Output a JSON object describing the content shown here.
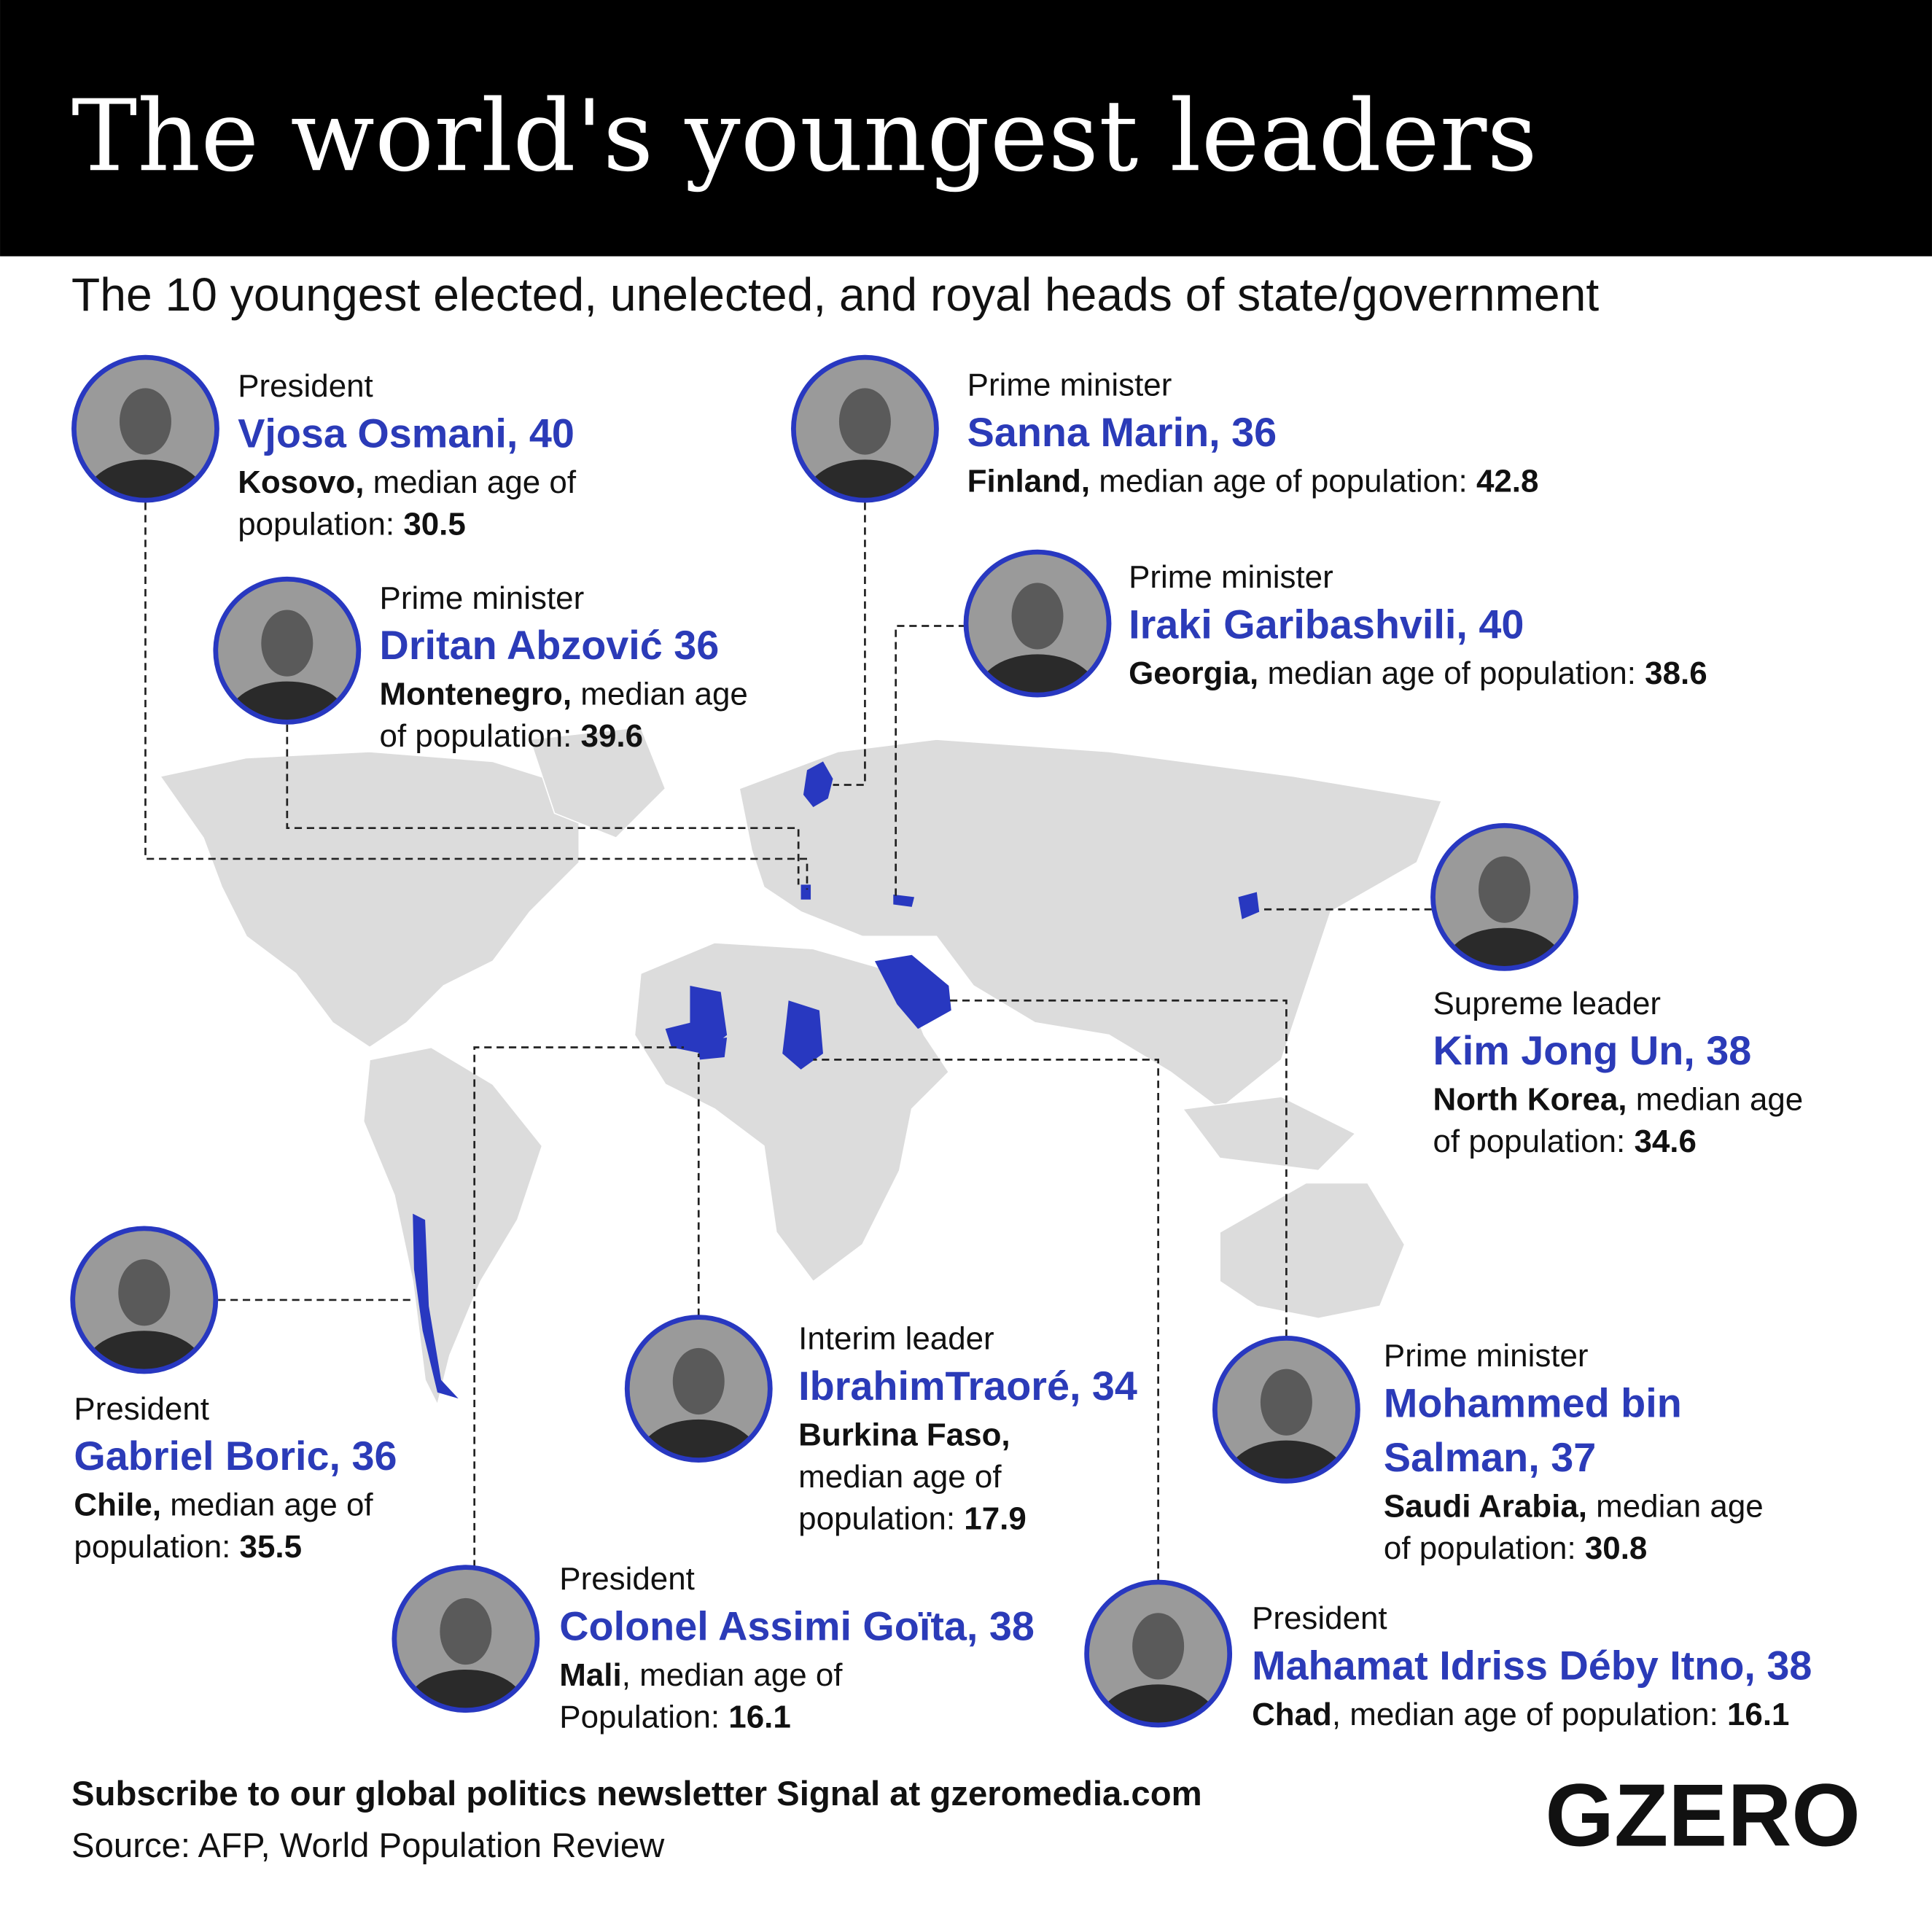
{
  "header": {
    "title": "The world's youngest leaders",
    "subtitle": "The 10 youngest elected, unelected, and royal heads of state/government"
  },
  "leaders": [
    {
      "role": "President",
      "name": [
        "Vjosa Osmani, 40"
      ],
      "details": [
        [
          {
            "t": "Kosovo,",
            "b": true
          },
          {
            "t": " median age of"
          }
        ],
        [
          {
            "t": "population: "
          },
          {
            "t": "30.5",
            "b": true
          }
        ]
      ]
    },
    {
      "role": "Prime minister",
      "name": [
        "Sanna Marin, 36"
      ],
      "details": [
        [
          {
            "t": "Finland,",
            "b": true
          },
          {
            "t": " median age of population: "
          },
          {
            "t": "42.8",
            "b": true
          }
        ]
      ]
    },
    {
      "role": "Prime minister",
      "name": [
        "Dritan Abzović 36"
      ],
      "details": [
        [
          {
            "t": "Montenegro,",
            "b": true
          },
          {
            "t": " median age"
          }
        ],
        [
          {
            "t": "of population: "
          },
          {
            "t": "39.6",
            "b": true
          }
        ]
      ]
    },
    {
      "role": "Prime minister",
      "name": [
        "Iraki Garibashvili, 40"
      ],
      "details": [
        [
          {
            "t": "Georgia,",
            "b": true
          },
          {
            "t": " median age of population: "
          },
          {
            "t": "38.6",
            "b": true
          }
        ]
      ]
    },
    {
      "role": "Supreme leader",
      "name": [
        "Kim Jong Un, 38"
      ],
      "details": [
        [
          {
            "t": "North Korea,",
            "b": true
          },
          {
            "t": " median age"
          }
        ],
        [
          {
            "t": "of population: "
          },
          {
            "t": "34.6",
            "b": true
          }
        ]
      ]
    },
    {
      "role": "President",
      "name": [
        "Gabriel Boric, 36"
      ],
      "details": [
        [
          {
            "t": "Chile,",
            "b": true
          },
          {
            "t": " median age of"
          }
        ],
        [
          {
            "t": "population: "
          },
          {
            "t": "35.5",
            "b": true
          }
        ]
      ]
    },
    {
      "role": "Interim leader",
      "name": [
        "IbrahimTraoré, 34"
      ],
      "details": [
        [
          {
            "t": "Burkina Faso,",
            "b": true
          }
        ],
        [
          {
            "t": "median age of"
          }
        ],
        [
          {
            "t": "population: "
          },
          {
            "t": "17.9",
            "b": true
          }
        ]
      ]
    },
    {
      "role": "Prime minister",
      "name": [
        "Mohammed bin",
        "Salman, 37"
      ],
      "details": [
        [
          {
            "t": "Saudi Arabia,",
            "b": true
          },
          {
            "t": " median age"
          }
        ],
        [
          {
            "t": "of population: "
          },
          {
            "t": "30.8",
            "b": true
          }
        ]
      ]
    },
    {
      "role": "President",
      "name": [
        "Colonel Assimi Goïta, 38"
      ],
      "details": [
        [
          {
            "t": "Mali",
            "b": true
          },
          {
            "t": ", median age of"
          }
        ],
        [
          {
            "t": "Population: "
          },
          {
            "t": "16.1",
            "b": true
          }
        ]
      ]
    },
    {
      "role": "President",
      "name": [
        "Mahamat Idriss Déby Itno, 38"
      ],
      "details": [
        [
          {
            "t": "Chad",
            "b": true
          },
          {
            "t": ", median age of population: "
          },
          {
            "t": "16.1",
            "b": true
          }
        ]
      ]
    }
  ],
  "footer": {
    "newsletter": "Subscribe to our global politics newsletter Signal at gzeromedia.com",
    "source": "Source: AFP, World Population Review",
    "logo": "GZERO"
  }
}
